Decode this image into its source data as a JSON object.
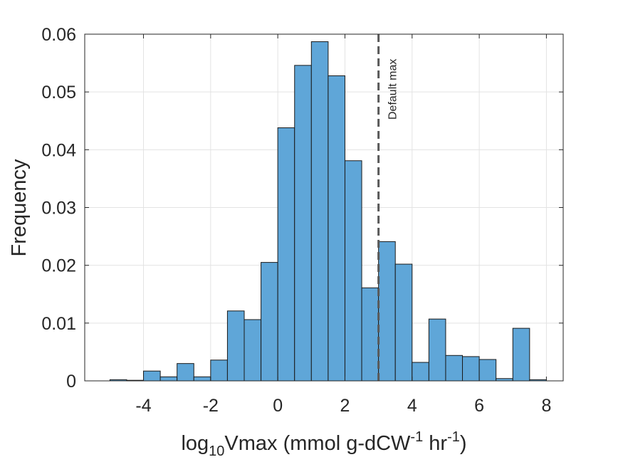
{
  "chart_data": {
    "type": "bar",
    "subtype": "histogram",
    "bin_width": 0.5,
    "bins_start": [
      -5.0,
      -4.5,
      -4.0,
      -3.5,
      -3.0,
      -2.5,
      -2.0,
      -1.5,
      -1.0,
      -0.5,
      0.0,
      0.5,
      1.0,
      1.5,
      2.0,
      2.5,
      3.0,
      3.5,
      4.0,
      4.5,
      5.0,
      5.5,
      6.0,
      6.5,
      7.0,
      7.5
    ],
    "values": [
      0.0002,
      0.0001,
      0.0017,
      0.0007,
      0.003,
      0.0007,
      0.0036,
      0.0121,
      0.0106,
      0.0205,
      0.0438,
      0.0546,
      0.0587,
      0.0528,
      0.0381,
      0.0161,
      0.0241,
      0.0202,
      0.0032,
      0.0107,
      0.0044,
      0.0042,
      0.0037,
      0.0004,
      0.0091,
      0.0002
    ],
    "xlim": [
      -5.75,
      8.5
    ],
    "ylim": [
      0,
      0.06
    ],
    "xticks": [
      -4,
      -2,
      0,
      2,
      4,
      6,
      8
    ],
    "xtick_labels": [
      "-4",
      "-2",
      "0",
      "2",
      "4",
      "6",
      "8"
    ],
    "yticks": [
      0,
      0.01,
      0.02,
      0.03,
      0.04,
      0.05,
      0.06
    ],
    "ytick_labels": [
      "0",
      "0.01",
      "0.02",
      "0.03",
      "0.04",
      "0.05",
      "0.06"
    ],
    "grid": true,
    "ylabel": "Frequency",
    "xlabel": {
      "base": "log",
      "sub": "10",
      "mid": "Vmax (mmol g-dCW",
      "sup1": "-1",
      "mid2": " hr",
      "sup2": "-1",
      "end": ")"
    },
    "bar_color": "#5fa6d8",
    "bar_edge_color": "#1a1a1a",
    "reference_line": {
      "x": 3,
      "label": "Default max",
      "style": "dashed",
      "color": "#595959"
    }
  }
}
